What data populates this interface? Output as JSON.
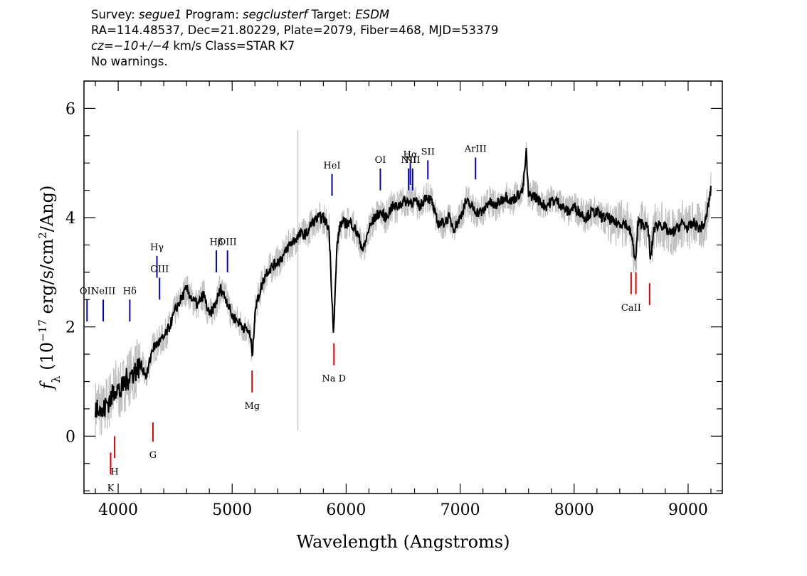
{
  "header": {
    "survey_label": "Survey:",
    "survey": "segue1",
    "program_label": "Program:",
    "program": "segclusterf",
    "target_label": "Target:",
    "target": "ESDM",
    "line2": "RA=114.48537, Dec=21.80229, Plate=2079, Fiber=468, MJD=53379",
    "cz_label": "cz=",
    "cz_value": "−10+/−4",
    "cz_rest": "km/s Class=STAR K7",
    "line4": "No warnings."
  },
  "colors": {
    "emission": "#0000cc",
    "absorption": "#dd0000",
    "raw": "#c0c0c0",
    "smooth": "#000000"
  },
  "chart_data": {
    "type": "line",
    "xlabel": "Wavelength (Angstroms)",
    "ylabel": "fλ (10^-17 erg/s/cm^2/Ang)",
    "xlim": [
      3700,
      9300
    ],
    "ylim": [
      -1.05,
      6.5
    ],
    "x_ticks": [
      4000,
      5000,
      6000,
      7000,
      8000,
      9000
    ],
    "y_ticks": [
      0,
      2,
      4,
      6
    ],
    "series": [
      {
        "style": "smoothed-black",
        "x": [
          3800,
          3830,
          3860,
          3900,
          3940,
          3980,
          4020,
          4060,
          4100,
          4150,
          4200,
          4250,
          4300,
          4350,
          4400,
          4450,
          4500,
          4550,
          4600,
          4650,
          4700,
          4750,
          4800,
          4850,
          4900,
          4950,
          5000,
          5050,
          5100,
          5150,
          5180,
          5200,
          5250,
          5300,
          5350,
          5400,
          5450,
          5500,
          5550,
          5600,
          5650,
          5700,
          5750,
          5800,
          5850,
          5870,
          5890,
          5920,
          5950,
          6000,
          6050,
          6100,
          6150,
          6200,
          6250,
          6300,
          6350,
          6400,
          6450,
          6500,
          6550,
          6600,
          6650,
          6700,
          6750,
          6800,
          6850,
          6900,
          6950,
          7000,
          7050,
          7100,
          7150,
          7200,
          7250,
          7300,
          7350,
          7400,
          7450,
          7500,
          7550,
          7580,
          7600,
          7650,
          7700,
          7750,
          7800,
          7850,
          7900,
          7950,
          8000,
          8050,
          8100,
          8150,
          8200,
          8250,
          8300,
          8350,
          8400,
          8450,
          8500,
          8540,
          8560,
          8600,
          8650,
          8670,
          8700,
          8750,
          8800,
          8850,
          8900,
          8950,
          9000,
          9050,
          9100,
          9150,
          9200
        ],
        "y": [
          0.5,
          0.6,
          0.4,
          0.6,
          0.7,
          0.9,
          0.8,
          1.0,
          1.1,
          1.2,
          1.3,
          1.1,
          1.6,
          1.7,
          1.8,
          2.0,
          2.3,
          2.5,
          2.7,
          2.5,
          2.4,
          2.6,
          2.2,
          2.4,
          2.7,
          2.5,
          2.2,
          2.1,
          2.0,
          1.9,
          1.5,
          2.3,
          2.7,
          3.0,
          3.1,
          3.2,
          3.3,
          3.5,
          3.6,
          3.7,
          3.7,
          3.9,
          4.0,
          4.0,
          3.8,
          2.8,
          1.9,
          3.5,
          3.9,
          3.9,
          3.9,
          3.7,
          3.4,
          3.8,
          4.0,
          4.1,
          4.0,
          4.2,
          4.2,
          4.3,
          4.3,
          4.3,
          4.2,
          4.4,
          4.3,
          3.9,
          3.9,
          4.0,
          3.8,
          4.0,
          4.3,
          4.2,
          4.1,
          4.1,
          4.3,
          4.2,
          4.3,
          4.4,
          4.3,
          4.4,
          4.5,
          5.2,
          4.4,
          4.4,
          4.3,
          4.2,
          4.3,
          4.3,
          4.2,
          4.1,
          4.2,
          4.1,
          4.0,
          4.1,
          4.1,
          4.0,
          4.0,
          3.9,
          3.9,
          3.9,
          3.7,
          3.2,
          3.9,
          3.9,
          3.8,
          3.2,
          3.8,
          3.9,
          3.8,
          3.7,
          3.8,
          3.9,
          3.8,
          3.9,
          3.8,
          3.9,
          4.5
        ]
      }
    ],
    "spike": {
      "x": 5577,
      "y_min": 0.1,
      "y_max": 5.6
    },
    "emission_lines": [
      {
        "label": "OII",
        "x": 3727,
        "y0": 2.1,
        "y1": 2.5,
        "ly": 2.55
      },
      {
        "label": "NeIII",
        "x": 3869,
        "y0": 2.1,
        "y1": 2.5,
        "ly": 2.55
      },
      {
        "label": "Hδ",
        "x": 4102,
        "y0": 2.1,
        "y1": 2.5,
        "ly": 2.55
      },
      {
        "label": "Hγ",
        "x": 4340,
        "y0": 2.9,
        "y1": 3.3,
        "ly": 3.35
      },
      {
        "label": "OIII",
        "x": 4363,
        "y0": 2.5,
        "y1": 2.9,
        "ly": 2.95
      },
      {
        "label": "Hβ",
        "x": 4861,
        "y0": 3.0,
        "y1": 3.4,
        "ly": 3.45
      },
      {
        "label": "OIII",
        "x": 4959,
        "y0": 3.0,
        "y1": 3.4,
        "ly": 3.45
      },
      {
        "label": "HeI",
        "x": 5876,
        "y0": 4.4,
        "y1": 4.8,
        "ly": 4.85
      },
      {
        "label": "OI",
        "x": 6300,
        "y0": 4.5,
        "y1": 4.9,
        "ly": 4.95
      },
      {
        "label": "NII",
        "x": 6548,
        "y0": 4.5,
        "y1": 4.9,
        "ly": 4.95
      },
      {
        "label": "Hα",
        "x": 6563,
        "y0": 4.6,
        "y1": 5.0,
        "ly": 5.05
      },
      {
        "label": "NII",
        "x": 6583,
        "y0": 4.5,
        "y1": 4.9,
        "ly": 4.95
      },
      {
        "label": "SII",
        "x": 6717,
        "y0": 4.7,
        "y1": 5.05,
        "ly": 5.1
      },
      {
        "label": "ArIII",
        "x": 7135,
        "y0": 4.7,
        "y1": 5.1,
        "ly": 5.15
      }
    ],
    "absorption_lines": [
      {
        "label": "K",
        "x": 3934,
        "y0": -0.3,
        "y1": -0.7,
        "ly": -0.95
      },
      {
        "label": "H",
        "x": 3969,
        "y0": 0.0,
        "y1": -0.4,
        "ly": -0.65
      },
      {
        "label": "G",
        "x": 4305,
        "y0": 0.25,
        "y1": -0.1,
        "ly": -0.35
      },
      {
        "label": "Mg",
        "x": 5175,
        "y0": 1.2,
        "y1": 0.8,
        "ly": 0.55
      },
      {
        "label": "Na D",
        "x": 5893,
        "y0": 1.7,
        "y1": 1.3,
        "ly": 1.05
      },
      {
        "label": "CaII",
        "x": 8500,
        "y0": 3.0,
        "y1": 2.6,
        "ly": 2.35
      },
      {
        "label": "",
        "x": 8542,
        "y0": 3.0,
        "y1": 2.6,
        "ly": 2.35
      },
      {
        "label": "",
        "x": 8662,
        "y0": 2.8,
        "y1": 2.4,
        "ly": 2.35
      }
    ]
  }
}
